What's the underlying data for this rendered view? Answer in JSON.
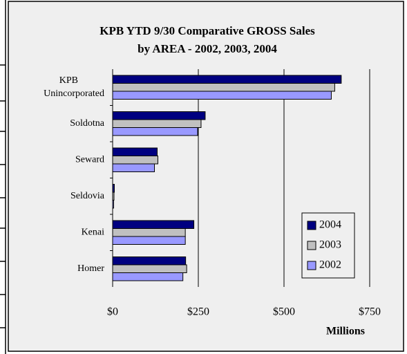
{
  "chart_data": {
    "type": "bar",
    "orientation": "horizontal",
    "title": "KPB YTD 9/30 Comparative GROSS Sales",
    "subtitle": "by AREA - 2002, 2003, 2004",
    "xlabel": "Millions",
    "categories": [
      "KPB\nUnincorporated",
      "Soldotna",
      "Seward",
      "Seldovia",
      "Kenai",
      "Homer"
    ],
    "series": [
      {
        "name": "2004",
        "color": "#000080",
        "values": [
          667,
          270,
          130,
          5,
          237,
          213
        ]
      },
      {
        "name": "2003",
        "color": "#c0c0c0",
        "values": [
          648,
          258,
          132,
          4,
          212,
          216
        ]
      },
      {
        "name": "2002",
        "color": "#9999ff",
        "values": [
          638,
          248,
          122,
          3,
          212,
          205
        ]
      }
    ],
    "xlim": [
      0,
      750
    ],
    "xticks": [
      {
        "value": 0,
        "label": "$0"
      },
      {
        "value": 250,
        "label": "$250"
      },
      {
        "value": 500,
        "label": "$500"
      },
      {
        "value": 750,
        "label": "$750"
      }
    ],
    "grid": true,
    "legend": "lower right"
  }
}
